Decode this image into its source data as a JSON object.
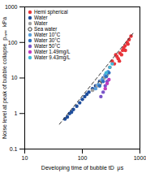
{
  "chart_data": {
    "type": "scatter",
    "x_label": "Developing time of bubble tD  μs",
    "y_label": "Noise level at peak of bubble collapse  pₘₐₓ  kPa",
    "log": true,
    "grid": false,
    "legend": "top-left",
    "xlim": [
      10,
      1000
    ],
    "xticks": [
      10,
      100,
      1000
    ],
    "ylim": [
      0.1,
      1000
    ],
    "yticks": [
      0.1,
      1,
      10,
      100,
      1000
    ],
    "series": [
      {
        "name": "Hemi spherical",
        "color": "#e8343a",
        "marker": "circle",
        "x": [
          300,
          330,
          360,
          380,
          400,
          420,
          440,
          450,
          480,
          500,
          520,
          550,
          560,
          600,
          620,
          650,
          700
        ],
        "values": [
          20,
          30,
          25,
          45,
          40,
          35,
          30,
          50,
          45,
          60,
          70,
          80,
          60,
          100,
          90,
          120,
          150
        ]
      },
      {
        "name": "Water",
        "color": "#1f4e9c",
        "marker": "circle",
        "x": [
          50,
          55,
          60,
          65,
          70,
          80,
          90,
          100,
          110,
          120,
          130,
          150,
          170,
          200,
          230,
          250
        ],
        "values": [
          0.7,
          0.8,
          1,
          1.1,
          1.3,
          1.6,
          2,
          2.5,
          3,
          3.5,
          4,
          5,
          6,
          8,
          10,
          12
        ]
      },
      {
        "name": "Water",
        "color": "#a0a0a0",
        "marker": "circle",
        "x": [
          150,
          180,
          210,
          240
        ],
        "values": [
          4.5,
          6,
          8,
          10
        ]
      },
      {
        "name": "Sea water",
        "color": "#000000",
        "marker": "open circle",
        "x": [
          200,
          260
        ],
        "values": [
          7,
          12
        ]
      },
      {
        "name": "Water 10°C",
        "color": "#5aa0dc",
        "marker": "circle",
        "x": [
          170,
          190,
          220,
          250,
          280
        ],
        "values": [
          5,
          6.5,
          9,
          12,
          15
        ]
      },
      {
        "name": "Water 30°C",
        "color": "#2f6fbf",
        "marker": "circle",
        "x": [
          200,
          230,
          260,
          290
        ],
        "values": [
          6,
          8,
          11,
          14
        ]
      },
      {
        "name": "Water 50°C",
        "color": "#7a55c8",
        "marker": "circle",
        "x": [
          210,
          230,
          250,
          270
        ],
        "values": [
          3,
          4,
          6,
          8
        ]
      },
      {
        "name": "Water 1.49mg/L",
        "color": "#c03cc0",
        "marker": "circle",
        "x": [
          250,
          270,
          290
        ],
        "values": [
          5,
          7,
          9
        ]
      },
      {
        "name": "Water 9.43mg/L",
        "color": "#40b8d8",
        "marker": "circle",
        "x": [
          260,
          300,
          330
        ],
        "values": [
          14,
          20,
          25
        ]
      },
      {
        "type": "line",
        "line_style": "dashed",
        "color": "#333333",
        "x": [
          40,
          800
        ],
        "values": [
          0.5,
          200
        ]
      }
    ]
  }
}
